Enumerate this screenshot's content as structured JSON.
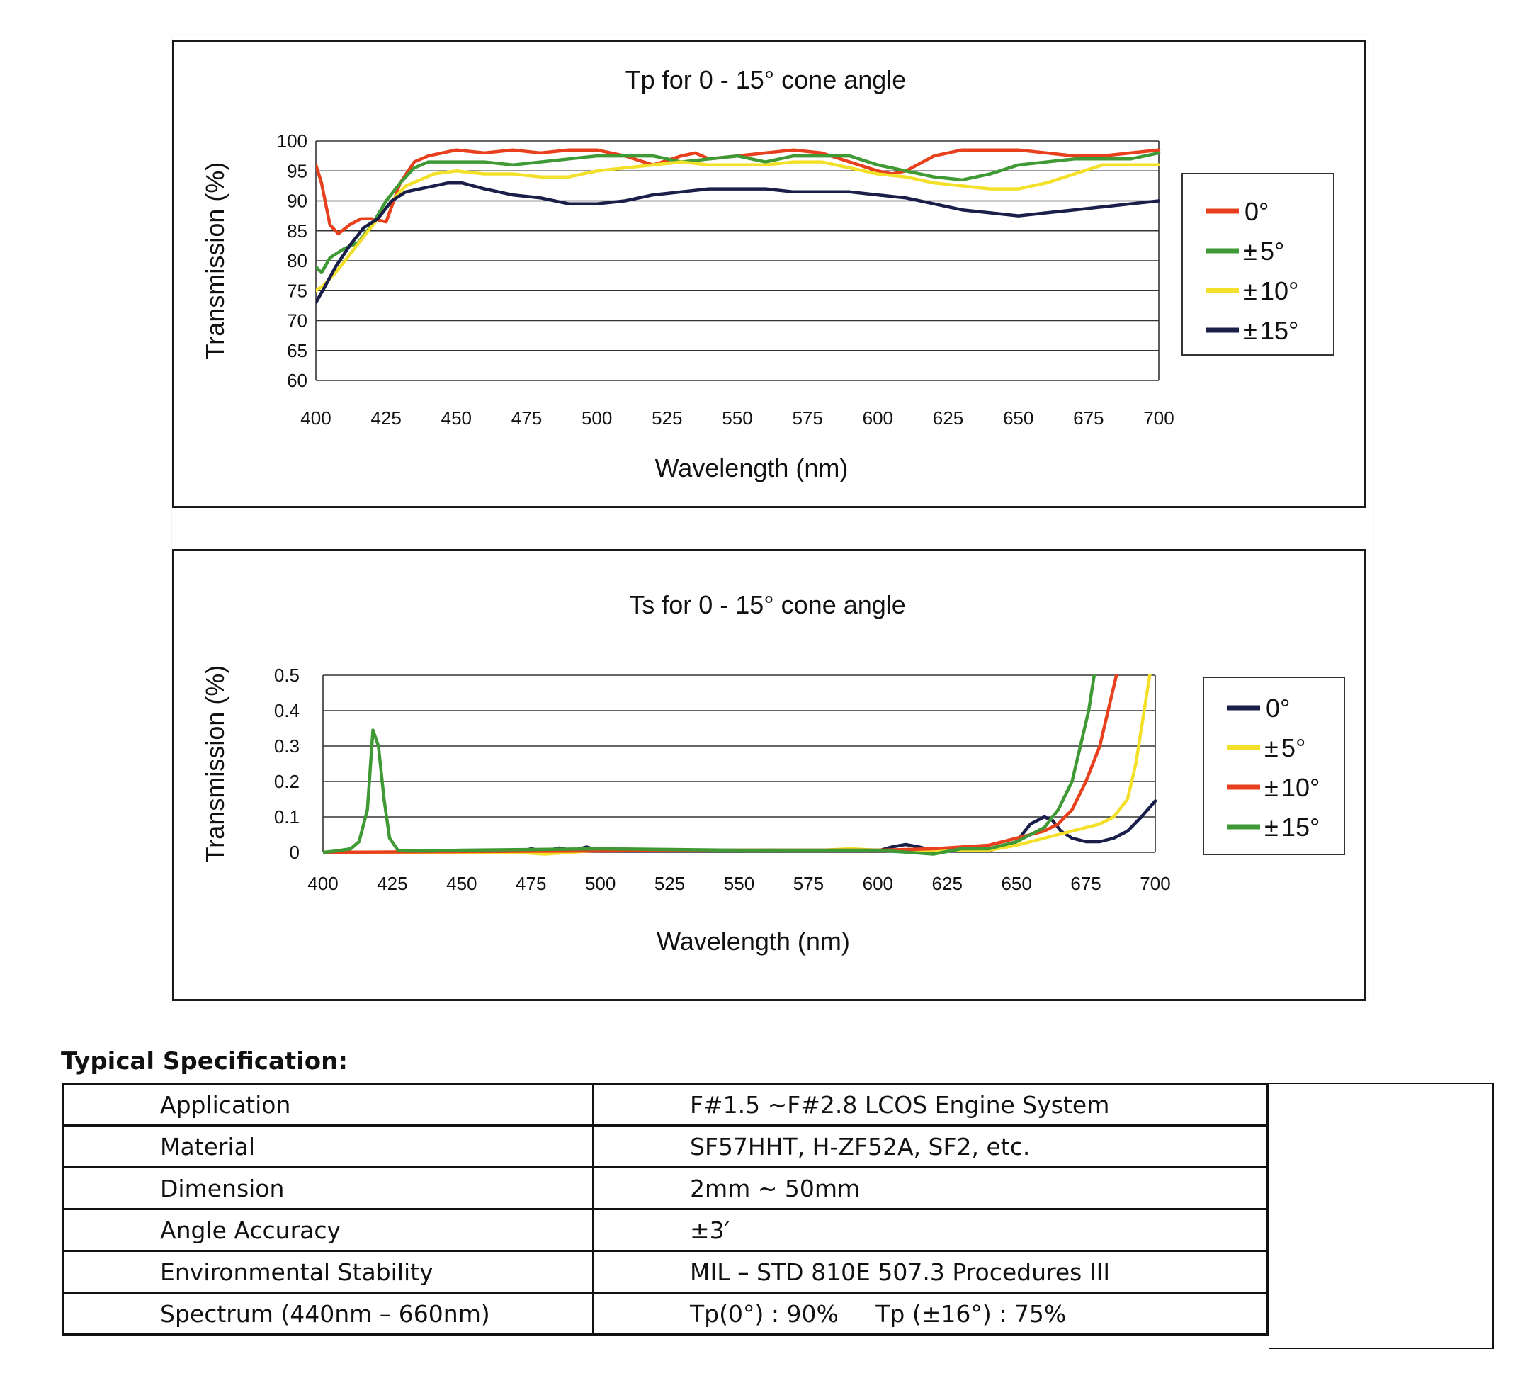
{
  "charts": [
    {
      "id": "tp",
      "type": "line",
      "title": "Tp for 0 - 15° cone angle",
      "xlabel": "Wavelength (nm)",
      "ylabel": "Transmission (%)",
      "xlim": [
        400,
        700
      ],
      "ylim": [
        60,
        100
      ],
      "xticks": [
        "400",
        "425",
        "450",
        "475",
        "500",
        "525",
        "550",
        "575",
        "600",
        "625",
        "650",
        "675",
        "700"
      ],
      "yticks": [
        "60",
        "65",
        "70",
        "75",
        "80",
        "85",
        "90",
        "95",
        "100"
      ],
      "grid": true,
      "legend_position": "right",
      "series": [
        {
          "name": "0°",
          "sign": "",
          "deg": "0°",
          "color": "#e8401c",
          "x": [
            400,
            402,
            405,
            408,
            412,
            416,
            420,
            425,
            430,
            435,
            440,
            450,
            460,
            470,
            480,
            490,
            500,
            510,
            520,
            530,
            535,
            540,
            550,
            560,
            570,
            580,
            590,
            600,
            605,
            610,
            620,
            630,
            640,
            650,
            660,
            670,
            680,
            690,
            700
          ],
          "y": [
            96,
            93,
            86,
            84.5,
            86,
            87,
            87,
            86.5,
            93,
            96.5,
            97.5,
            98.5,
            98,
            98.5,
            98,
            98.5,
            98.5,
            97.5,
            96,
            97.5,
            98,
            97,
            97.5,
            98,
            98.5,
            98,
            96.5,
            95,
            94.5,
            95,
            97.5,
            98.5,
            98.5,
            98.5,
            98,
            97.5,
            97.5,
            98,
            98.5
          ]
        },
        {
          "name": "± 5°",
          "sign": "±",
          "deg": " 5°",
          "color": "#3f9a35",
          "x": [
            400,
            402,
            405,
            410,
            415,
            420,
            425,
            430,
            435,
            440,
            450,
            460,
            470,
            480,
            490,
            500,
            510,
            520,
            530,
            540,
            550,
            560,
            570,
            580,
            590,
            600,
            610,
            620,
            630,
            640,
            650,
            660,
            670,
            680,
            690,
            700
          ],
          "y": [
            79,
            78,
            80.5,
            82,
            83,
            86,
            90,
            93,
            95.5,
            96.5,
            96.5,
            96.5,
            96,
            96.5,
            97,
            97.5,
            97.5,
            97.5,
            96.5,
            97,
            97.5,
            96.5,
            97.5,
            97.5,
            97.5,
            96,
            95,
            94,
            93.5,
            94.5,
            96,
            96.5,
            97,
            97,
            97,
            98
          ]
        },
        {
          "name": "± 10°",
          "sign": "±",
          "deg": "10°",
          "color": "#f2e02a",
          "x": [
            400,
            403,
            407,
            412,
            417,
            422,
            427,
            432,
            437,
            442,
            450,
            460,
            470,
            480,
            490,
            500,
            510,
            520,
            530,
            540,
            550,
            560,
            570,
            580,
            590,
            600,
            610,
            620,
            630,
            640,
            650,
            660,
            670,
            680,
            690,
            700
          ],
          "y": [
            75,
            76,
            78,
            81,
            84,
            87,
            90,
            92.5,
            93.5,
            94.5,
            95,
            94.5,
            94.5,
            94,
            94,
            95,
            95.5,
            96,
            96.5,
            96,
            96,
            96,
            96.5,
            96.5,
            95.5,
            94.5,
            94,
            93,
            92.5,
            92,
            92,
            93,
            94.5,
            96,
            96,
            96
          ]
        },
        {
          "name": "± 15°",
          "sign": "±",
          "deg": "15°",
          "color": "#1a1f4a",
          "x": [
            400,
            403,
            407,
            412,
            417,
            422,
            427,
            432,
            437,
            442,
            447,
            452,
            460,
            470,
            480,
            490,
            500,
            510,
            520,
            530,
            540,
            550,
            560,
            570,
            580,
            590,
            600,
            610,
            620,
            630,
            640,
            650,
            660,
            670,
            680,
            690,
            700
          ],
          "y": [
            73,
            75.5,
            79,
            82.5,
            85.5,
            87,
            90,
            91.5,
            92,
            92.5,
            93,
            93,
            92,
            91,
            90.5,
            89.5,
            89.5,
            90,
            91,
            91.5,
            92,
            92,
            92,
            91.5,
            91.5,
            91.5,
            91,
            90.5,
            89.5,
            88.5,
            88,
            87.5,
            88,
            88.5,
            89,
            89.5,
            90
          ]
        }
      ]
    },
    {
      "id": "ts",
      "type": "line",
      "title": "Ts for 0 - 15° cone angle",
      "xlabel": "Wavelength (nm)",
      "ylabel": "Transmission (%)",
      "xlim": [
        400,
        700
      ],
      "ylim": [
        0,
        0.5
      ],
      "xticks": [
        "400",
        "425",
        "450",
        "475",
        "500",
        "525",
        "550",
        "575",
        "600",
        "625",
        "650",
        "675",
        "700"
      ],
      "yticks": [
        "0",
        "0.1",
        "0.2",
        "0.3",
        "0.4",
        "0.5"
      ],
      "grid": true,
      "legend_position": "right",
      "series": [
        {
          "name": "0°",
          "sign": "",
          "deg": "0°",
          "color": "#1a1f4a",
          "x": [
            400,
            470,
            475,
            480,
            485,
            490,
            495,
            500,
            550,
            560,
            600,
            605,
            610,
            615,
            620,
            640,
            650,
            655,
            660,
            663,
            666,
            670,
            675,
            680,
            685,
            690,
            695,
            700
          ],
          "y": [
            0,
            0,
            0.01,
            0.003,
            0.012,
            0.005,
            0.015,
            0.004,
            0.004,
            0.006,
            0.004,
            0.015,
            0.022,
            0.015,
            0.005,
            0.004,
            0.03,
            0.08,
            0.1,
            0.09,
            0.06,
            0.04,
            0.03,
            0.03,
            0.04,
            0.06,
            0.1,
            0.145
          ]
        },
        {
          "name": "± 5°",
          "sign": "±",
          "deg": " 5°",
          "color": "#f2e02a",
          "x": [
            400,
            470,
            480,
            500,
            580,
            590,
            600,
            640,
            650,
            660,
            670,
            680,
            685,
            690,
            693,
            696,
            698,
            700
          ],
          "y": [
            0,
            0,
            -0.005,
            0.006,
            0.006,
            0.01,
            0.006,
            0.006,
            0.02,
            0.04,
            0.06,
            0.08,
            0.1,
            0.15,
            0.25,
            0.4,
            0.5,
            0.55
          ]
        },
        {
          "name": "± 10°",
          "sign": "±",
          "deg": "10°",
          "color": "#e8401c",
          "x": [
            400,
            500,
            550,
            600,
            620,
            640,
            650,
            660,
            665,
            670,
            675,
            680,
            683,
            686,
            688
          ],
          "y": [
            0,
            0.004,
            0.006,
            0.006,
            0.01,
            0.02,
            0.04,
            0.06,
            0.08,
            0.12,
            0.2,
            0.3,
            0.4,
            0.5,
            0.55
          ]
        },
        {
          "name": "± 15°",
          "sign": "±",
          "deg": "15°",
          "color": "#3f9a35",
          "x": [
            400,
            405,
            410,
            413,
            416,
            418,
            420,
            422,
            424,
            427,
            430,
            440,
            450,
            500,
            550,
            600,
            620,
            630,
            640,
            650,
            660,
            665,
            670,
            673,
            676,
            678,
            680
          ],
          "y": [
            0,
            0.004,
            0.01,
            0.03,
            0.12,
            0.345,
            0.3,
            0.15,
            0.04,
            0.006,
            0.004,
            0.004,
            0.006,
            0.01,
            0.006,
            0.006,
            -0.005,
            0.01,
            0.01,
            0.03,
            0.07,
            0.12,
            0.2,
            0.3,
            0.4,
            0.5,
            0.55
          ]
        }
      ]
    }
  ],
  "spec": {
    "title": "Typical Specification:",
    "rows": [
      {
        "key": "Application",
        "value": "F#1.5 ~F#2.8 LCOS Engine System"
      },
      {
        "key": "Material",
        "value": "SF57HHT, H-ZF52A, SF2, etc."
      },
      {
        "key": "Dimension",
        "value": "2mm ~ 50mm"
      },
      {
        "key": "Angle Accuracy",
        "value": "±3′"
      },
      {
        "key": "Environmental Stability",
        "value": "MIL – STD 810E 507.3 Procedures III"
      },
      {
        "key": "Spectrum (440nm – 660nm)",
        "value": "Tp(0°) : 90%     Tp (±16°) : 75%"
      }
    ]
  }
}
